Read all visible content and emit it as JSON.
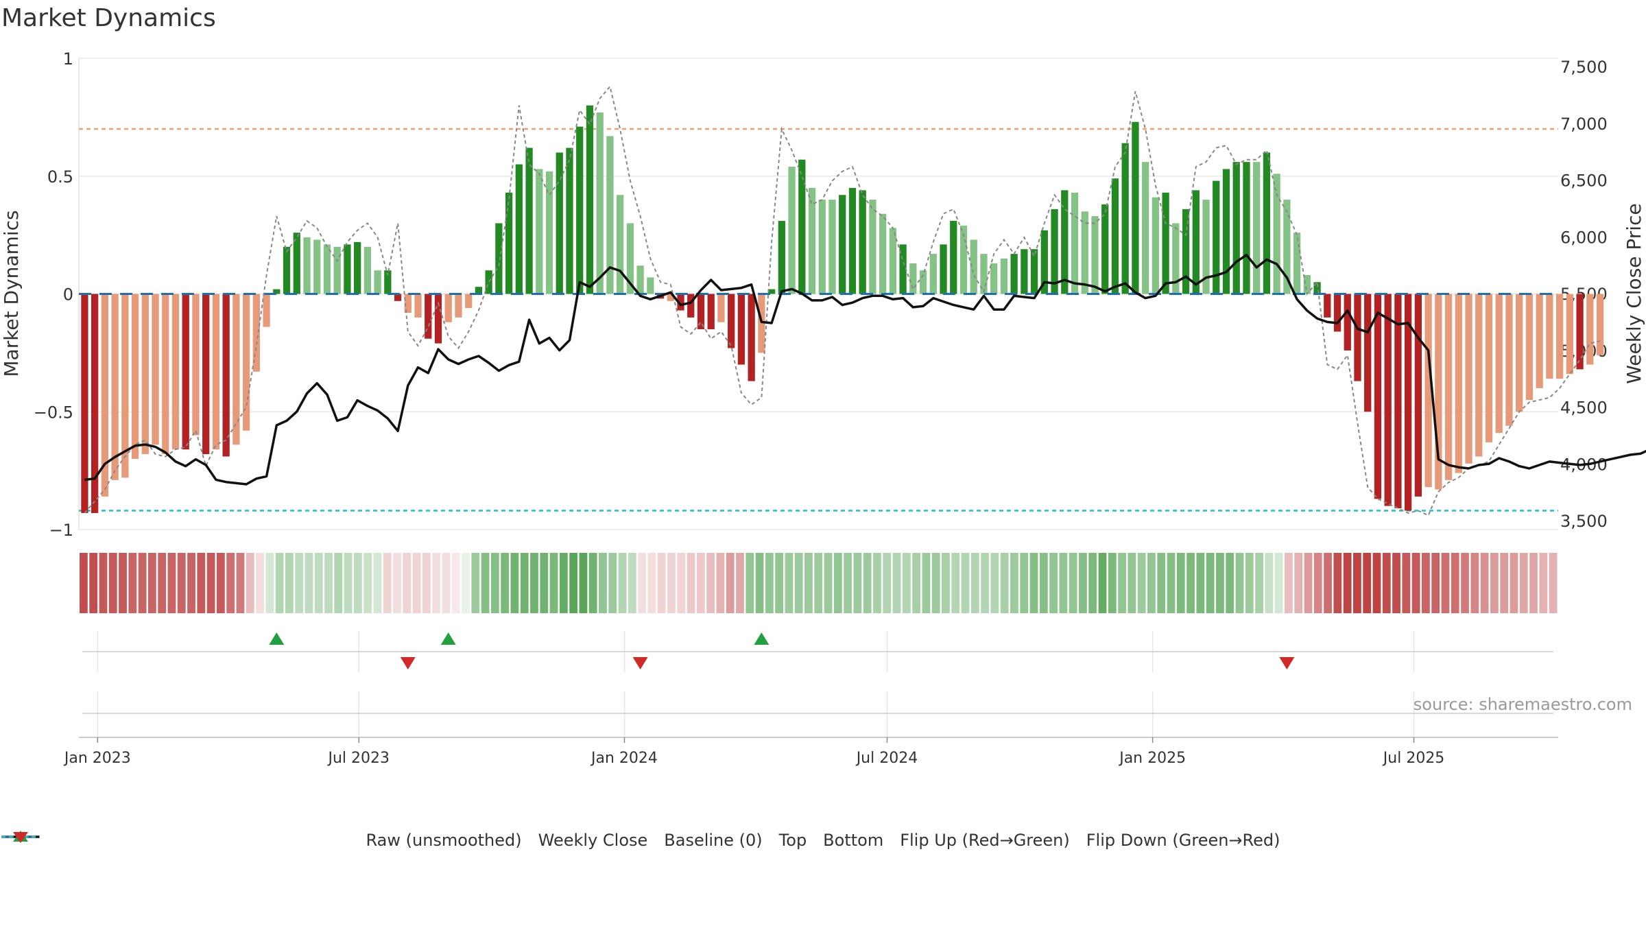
{
  "title": "Market Dynamics",
  "source": "source: sharemaestro.com",
  "colors": {
    "strong_green": "#238a23",
    "light_green": "#85c285",
    "strong_red": "#b22222",
    "light_red": "#e79a7a",
    "raw_line": "#888888",
    "close_line": "#111111",
    "baseline": "#1f6fb0",
    "top_line": "#f0a070",
    "bottom_line": "#20c0c8",
    "flip_up": "#22a040",
    "flip_down": "#d22828"
  },
  "legend": [
    {
      "key": "raw",
      "label": "Raw (unsmoothed)"
    },
    {
      "key": "close",
      "label": "Weekly Close"
    },
    {
      "key": "baseline",
      "label": "Baseline (0)"
    },
    {
      "key": "top",
      "label": "Top"
    },
    {
      "key": "bottom",
      "label": "Bottom"
    },
    {
      "key": "flip_up",
      "label": "Flip Up (Red→Green)"
    },
    {
      "key": "flip_down",
      "label": "Flip Down (Green→Red)"
    }
  ],
  "chart_data": {
    "type": "bar",
    "title": "Market Dynamics",
    "ylabel": "Market Dynamics",
    "y2label": "Weekly Close Price",
    "ylim": [
      -1,
      1
    ],
    "y2lim": [
      3450,
      7550
    ],
    "yticks": [
      {
        "v": 1,
        "label": "1"
      },
      {
        "v": 0.5,
        "label": "0.5"
      },
      {
        "v": 0,
        "label": "0"
      },
      {
        "v": -0.5,
        "label": "−0.5"
      },
      {
        "v": -1,
        "label": "−1"
      }
    ],
    "y2ticks": [
      {
        "v": 7500,
        "label": "7,500"
      },
      {
        "v": 7000,
        "label": "7,000"
      },
      {
        "v": 6500,
        "label": "6,500"
      },
      {
        "v": 6000,
        "label": "6,000"
      },
      {
        "v": 5500,
        "label": "5,500"
      },
      {
        "v": 5000,
        "label": "5,000"
      },
      {
        "v": 4500,
        "label": "4,500"
      },
      {
        "v": 4000,
        "label": "4,000"
      },
      {
        "v": 3500,
        "label": "3,500"
      }
    ],
    "xlim": [
      "2022-12-19",
      "2025-10-09"
    ],
    "xticks": [
      {
        "date": "2023-01-01",
        "label": "Jan 2023"
      },
      {
        "date": "2023-07-01",
        "label": "Jul 2023"
      },
      {
        "date": "2024-01-01",
        "label": "Jan 2024"
      },
      {
        "date": "2024-07-01",
        "label": "Jul 2024"
      },
      {
        "date": "2025-01-01",
        "label": "Jan 2025"
      },
      {
        "date": "2025-07-01",
        "label": "Jul 2025"
      }
    ],
    "top": 0.7,
    "bottom": -0.92,
    "baseline": 0,
    "grid": true,
    "legend_position": "bottom",
    "first_week": "2022-12-23",
    "week_step_days": 7,
    "market_dynamics": [
      -0.93,
      -0.93,
      -0.86,
      -0.79,
      -0.78,
      -0.7,
      -0.68,
      -0.64,
      -0.68,
      -0.66,
      -0.66,
      -0.6,
      -0.68,
      -0.66,
      -0.69,
      -0.64,
      -0.58,
      -0.33,
      -0.14,
      0.02,
      0.2,
      0.26,
      0.24,
      0.23,
      0.21,
      0.2,
      0.21,
      0.22,
      0.2,
      0.1,
      0.1,
      -0.03,
      -0.08,
      -0.1,
      -0.19,
      -0.21,
      -0.12,
      -0.1,
      -0.06,
      0.03,
      0.1,
      0.3,
      0.43,
      0.55,
      0.62,
      0.53,
      0.52,
      0.6,
      0.62,
      0.71,
      0.8,
      0.77,
      0.67,
      0.42,
      0.3,
      0.12,
      0.07,
      -0.02,
      -0.03,
      -0.07,
      -0.1,
      -0.15,
      -0.15,
      -0.12,
      -0.23,
      -0.3,
      -0.37,
      -0.25,
      0.02,
      0.31,
      0.54,
      0.57,
      0.45,
      0.4,
      0.4,
      0.42,
      0.45,
      0.44,
      0.4,
      0.34,
      0.28,
      0.21,
      0.13,
      0.1,
      0.17,
      0.21,
      0.31,
      0.29,
      0.23,
      0.17,
      0.13,
      0.15,
      0.17,
      0.19,
      0.19,
      0.27,
      0.36,
      0.44,
      0.43,
      0.35,
      0.33,
      0.38,
      0.49,
      0.64,
      0.73,
      0.56,
      0.41,
      0.43,
      0.3,
      0.36,
      0.44,
      0.4,
      0.48,
      0.53,
      0.56,
      0.56,
      0.56,
      0.6,
      0.51,
      0.4,
      0.26,
      0.08,
      0.05,
      -0.1,
      -0.16,
      -0.24,
      -0.37,
      -0.5,
      -0.87,
      -0.9,
      -0.91,
      -0.92,
      -0.86,
      -0.82,
      -0.83,
      -0.79,
      -0.76,
      -0.72,
      -0.69,
      -0.63,
      -0.59,
      -0.56,
      -0.5,
      -0.45,
      -0.4,
      -0.36,
      -0.36,
      -0.34,
      -0.32,
      -0.3,
      -0.26
    ],
    "strength": [
      "s",
      "s",
      "l",
      "l",
      "l",
      "l",
      "l",
      "l",
      "l",
      "l",
      "s",
      "l",
      "s",
      "l",
      "s",
      "l",
      "l",
      "l",
      "l",
      "s",
      "s",
      "s",
      "l",
      "l",
      "l",
      "l",
      "s",
      "s",
      "l",
      "l",
      "s",
      "s",
      "l",
      "l",
      "s",
      "s",
      "l",
      "l",
      "l",
      "s",
      "s",
      "s",
      "s",
      "s",
      "s",
      "l",
      "l",
      "s",
      "s",
      "s",
      "s",
      "l",
      "l",
      "l",
      "l",
      "l",
      "l",
      "s",
      "l",
      "s",
      "s",
      "s",
      "s",
      "l",
      "s",
      "s",
      "s",
      "l",
      "s",
      "s",
      "l",
      "s",
      "l",
      "l",
      "l",
      "s",
      "s",
      "s",
      "l",
      "l",
      "l",
      "s",
      "l",
      "l",
      "l",
      "s",
      "s",
      "l",
      "l",
      "l",
      "l",
      "l",
      "s",
      "s",
      "s",
      "s",
      "s",
      "s",
      "l",
      "l",
      "l",
      "s",
      "s",
      "s",
      "s",
      "l",
      "l",
      "s",
      "l",
      "s",
      "s",
      "l",
      "s",
      "s",
      "s",
      "s",
      "l",
      "s",
      "l",
      "l",
      "l",
      "l",
      "s",
      "s",
      "s",
      "s",
      "s",
      "s",
      "s",
      "s",
      "s",
      "s",
      "s",
      "l",
      "l",
      "l",
      "l",
      "l",
      "l",
      "l",
      "l",
      "l",
      "l",
      "l",
      "l",
      "l",
      "l",
      "l",
      "s",
      "l",
      "l",
      "l",
      "l"
    ],
    "raw": [
      -0.93,
      -0.88,
      -0.83,
      -0.75,
      -0.69,
      -0.64,
      -0.62,
      -0.68,
      -0.69,
      -0.66,
      -0.65,
      -0.58,
      -0.73,
      -0.64,
      -0.62,
      -0.55,
      -0.48,
      -0.22,
      0.08,
      0.33,
      0.18,
      0.24,
      0.31,
      0.28,
      0.2,
      0.14,
      0.22,
      0.27,
      0.3,
      0.24,
      0.08,
      0.3,
      -0.16,
      -0.22,
      -0.14,
      -0.04,
      -0.18,
      -0.23,
      -0.16,
      -0.07,
      0.05,
      0.12,
      0.4,
      0.8,
      0.55,
      0.51,
      0.42,
      0.48,
      0.57,
      0.78,
      0.72,
      0.83,
      0.88,
      0.7,
      0.48,
      0.33,
      0.15,
      0.05,
      0.04,
      -0.14,
      -0.17,
      -0.12,
      -0.19,
      -0.16,
      -0.22,
      -0.42,
      -0.47,
      -0.44,
      0.22,
      0.7,
      0.61,
      0.5,
      0.38,
      0.4,
      0.48,
      0.52,
      0.54,
      0.42,
      0.36,
      0.33,
      0.28,
      0.14,
      0.02,
      0.08,
      0.22,
      0.34,
      0.36,
      0.25,
      0.08,
      0.01,
      0.17,
      0.23,
      0.17,
      0.24,
      0.16,
      0.3,
      0.42,
      0.36,
      0.33,
      0.3,
      0.3,
      0.34,
      0.54,
      0.6,
      0.86,
      0.7,
      0.46,
      0.3,
      0.28,
      0.25,
      0.54,
      0.56,
      0.62,
      0.63,
      0.55,
      0.57,
      0.57,
      0.61,
      0.42,
      0.35,
      0.25,
      0.0,
      0.05,
      -0.3,
      -0.32,
      -0.26,
      -0.55,
      -0.82,
      -0.87,
      -0.89,
      -0.91,
      -0.93,
      -0.92,
      -0.94,
      -0.84,
      -0.8,
      -0.78,
      -0.74,
      -0.73,
      -0.71,
      -0.64,
      -0.57,
      -0.5,
      -0.46,
      -0.45,
      -0.44,
      -0.4,
      -0.34,
      -0.28,
      -0.21,
      -0.2
    ],
    "weekly_close": [
      3860,
      3870,
      4000,
      4060,
      4110,
      4160,
      4170,
      4150,
      4100,
      4020,
      3980,
      4040,
      3990,
      3860,
      3840,
      3830,
      3820,
      3870,
      3890,
      4340,
      4380,
      4460,
      4620,
      4710,
      4610,
      4380,
      4410,
      4560,
      4510,
      4470,
      4400,
      4290,
      4690,
      4850,
      4800,
      5010,
      4920,
      4880,
      4920,
      4950,
      4890,
      4820,
      4870,
      4900,
      5270,
      5060,
      5110,
      5000,
      5090,
      5600,
      5560,
      5640,
      5730,
      5700,
      5590,
      5480,
      5450,
      5480,
      5510,
      5400,
      5420,
      5530,
      5620,
      5530,
      5540,
      5550,
      5580,
      5250,
      5240,
      5520,
      5540,
      5500,
      5440,
      5440,
      5470,
      5400,
      5420,
      5460,
      5480,
      5480,
      5450,
      5460,
      5380,
      5390,
      5460,
      5430,
      5400,
      5380,
      5360,
      5480,
      5360,
      5360,
      5480,
      5470,
      5460,
      5600,
      5590,
      5620,
      5590,
      5580,
      5560,
      5520,
      5560,
      5590,
      5510,
      5460,
      5480,
      5590,
      5600,
      5650,
      5580,
      5640,
      5660,
      5690,
      5780,
      5840,
      5730,
      5800,
      5760,
      5640,
      5450,
      5350,
      5280,
      5250,
      5240,
      5350,
      5190,
      5160,
      5330,
      5280,
      5230,
      5240,
      5110,
      5000,
      4040,
      3990,
      3970,
      3960,
      3990,
      4000,
      4050,
      4020,
      3980,
      3960,
      3990,
      4020,
      4010,
      4000,
      3990,
      4000,
      4020,
      4040,
      4060,
      4080,
      4090,
      4130
    ]
  },
  "regime_strip": {
    "levels": [
      0.8,
      0.8,
      0.75,
      0.75,
      0.75,
      0.7,
      0.7,
      0.7,
      0.7,
      0.7,
      0.7,
      0.7,
      0.75,
      0.75,
      0.75,
      0.65,
      0.6,
      0.3,
      0.15,
      0.2,
      0.35,
      0.35,
      0.3,
      0.3,
      0.3,
      0.3,
      0.35,
      0.3,
      0.3,
      0.25,
      0.2,
      0.2,
      0.15,
      0.2,
      0.2,
      0.2,
      0.15,
      0.15,
      0.1,
      0.1,
      0.45,
      0.55,
      0.55,
      0.6,
      0.65,
      0.65,
      0.65,
      0.65,
      0.6,
      0.7,
      0.75,
      0.75,
      0.65,
      0.5,
      0.45,
      0.35,
      0.3,
      0.15,
      0.15,
      0.2,
      0.2,
      0.2,
      0.25,
      0.25,
      0.3,
      0.35,
      0.45,
      0.4,
      0.5,
      0.55,
      0.5,
      0.5,
      0.45,
      0.45,
      0.45,
      0.45,
      0.45,
      0.5,
      0.45,
      0.45,
      0.45,
      0.4,
      0.35,
      0.35,
      0.35,
      0.4,
      0.45,
      0.45,
      0.4,
      0.35,
      0.35,
      0.35,
      0.35,
      0.35,
      0.4,
      0.45,
      0.5,
      0.55,
      0.55,
      0.5,
      0.5,
      0.5,
      0.55,
      0.6,
      0.7,
      0.6,
      0.5,
      0.5,
      0.45,
      0.5,
      0.55,
      0.55,
      0.6,
      0.6,
      0.6,
      0.6,
      0.6,
      0.6,
      0.5,
      0.45,
      0.4,
      0.25,
      0.2,
      0.3,
      0.35,
      0.45,
      0.55,
      0.65,
      0.8,
      0.85,
      0.85,
      0.85,
      0.85,
      0.8,
      0.8,
      0.75,
      0.75,
      0.7,
      0.7,
      0.65,
      0.65,
      0.6,
      0.55,
      0.5,
      0.45,
      0.45,
      0.45,
      0.4,
      0.4,
      0.35,
      0.35
    ],
    "polarity": [
      "r",
      "r",
      "r",
      "r",
      "r",
      "r",
      "r",
      "r",
      "r",
      "r",
      "r",
      "r",
      "r",
      "r",
      "r",
      "r",
      "r",
      "r",
      "r",
      "g",
      "g",
      "g",
      "g",
      "g",
      "g",
      "g",
      "g",
      "g",
      "g",
      "g",
      "g",
      "r",
      "r",
      "r",
      "r",
      "r",
      "r",
      "r",
      "r",
      "g",
      "g",
      "g",
      "g",
      "g",
      "g",
      "g",
      "g",
      "g",
      "g",
      "g",
      "g",
      "g",
      "g",
      "g",
      "g",
      "g",
      "g",
      "r",
      "r",
      "r",
      "r",
      "r",
      "r",
      "r",
      "r",
      "r",
      "r",
      "r",
      "g",
      "g",
      "g",
      "g",
      "g",
      "g",
      "g",
      "g",
      "g",
      "g",
      "g",
      "g",
      "g",
      "g",
      "g",
      "g",
      "g",
      "g",
      "g",
      "g",
      "g",
      "g",
      "g",
      "g",
      "g",
      "g",
      "g",
      "g",
      "g",
      "g",
      "g",
      "g",
      "g",
      "g",
      "g",
      "g",
      "g",
      "g",
      "g",
      "g",
      "g",
      "g",
      "g",
      "g",
      "g",
      "g",
      "g",
      "g",
      "g",
      "g",
      "g",
      "g",
      "g",
      "g",
      "g",
      "r",
      "r",
      "r",
      "r",
      "r",
      "r",
      "r",
      "r",
      "r",
      "r",
      "r",
      "r",
      "r",
      "r",
      "r",
      "r",
      "r",
      "r",
      "r",
      "r",
      "r",
      "r",
      "r",
      "r",
      "r",
      "r",
      "r",
      "r",
      "r",
      "r"
    ]
  },
  "flips": {
    "up": [
      "2023-05-05",
      "2023-09-01",
      "2024-04-05"
    ],
    "down": [
      "2023-08-04",
      "2024-01-12",
      "2025-04-04"
    ]
  }
}
